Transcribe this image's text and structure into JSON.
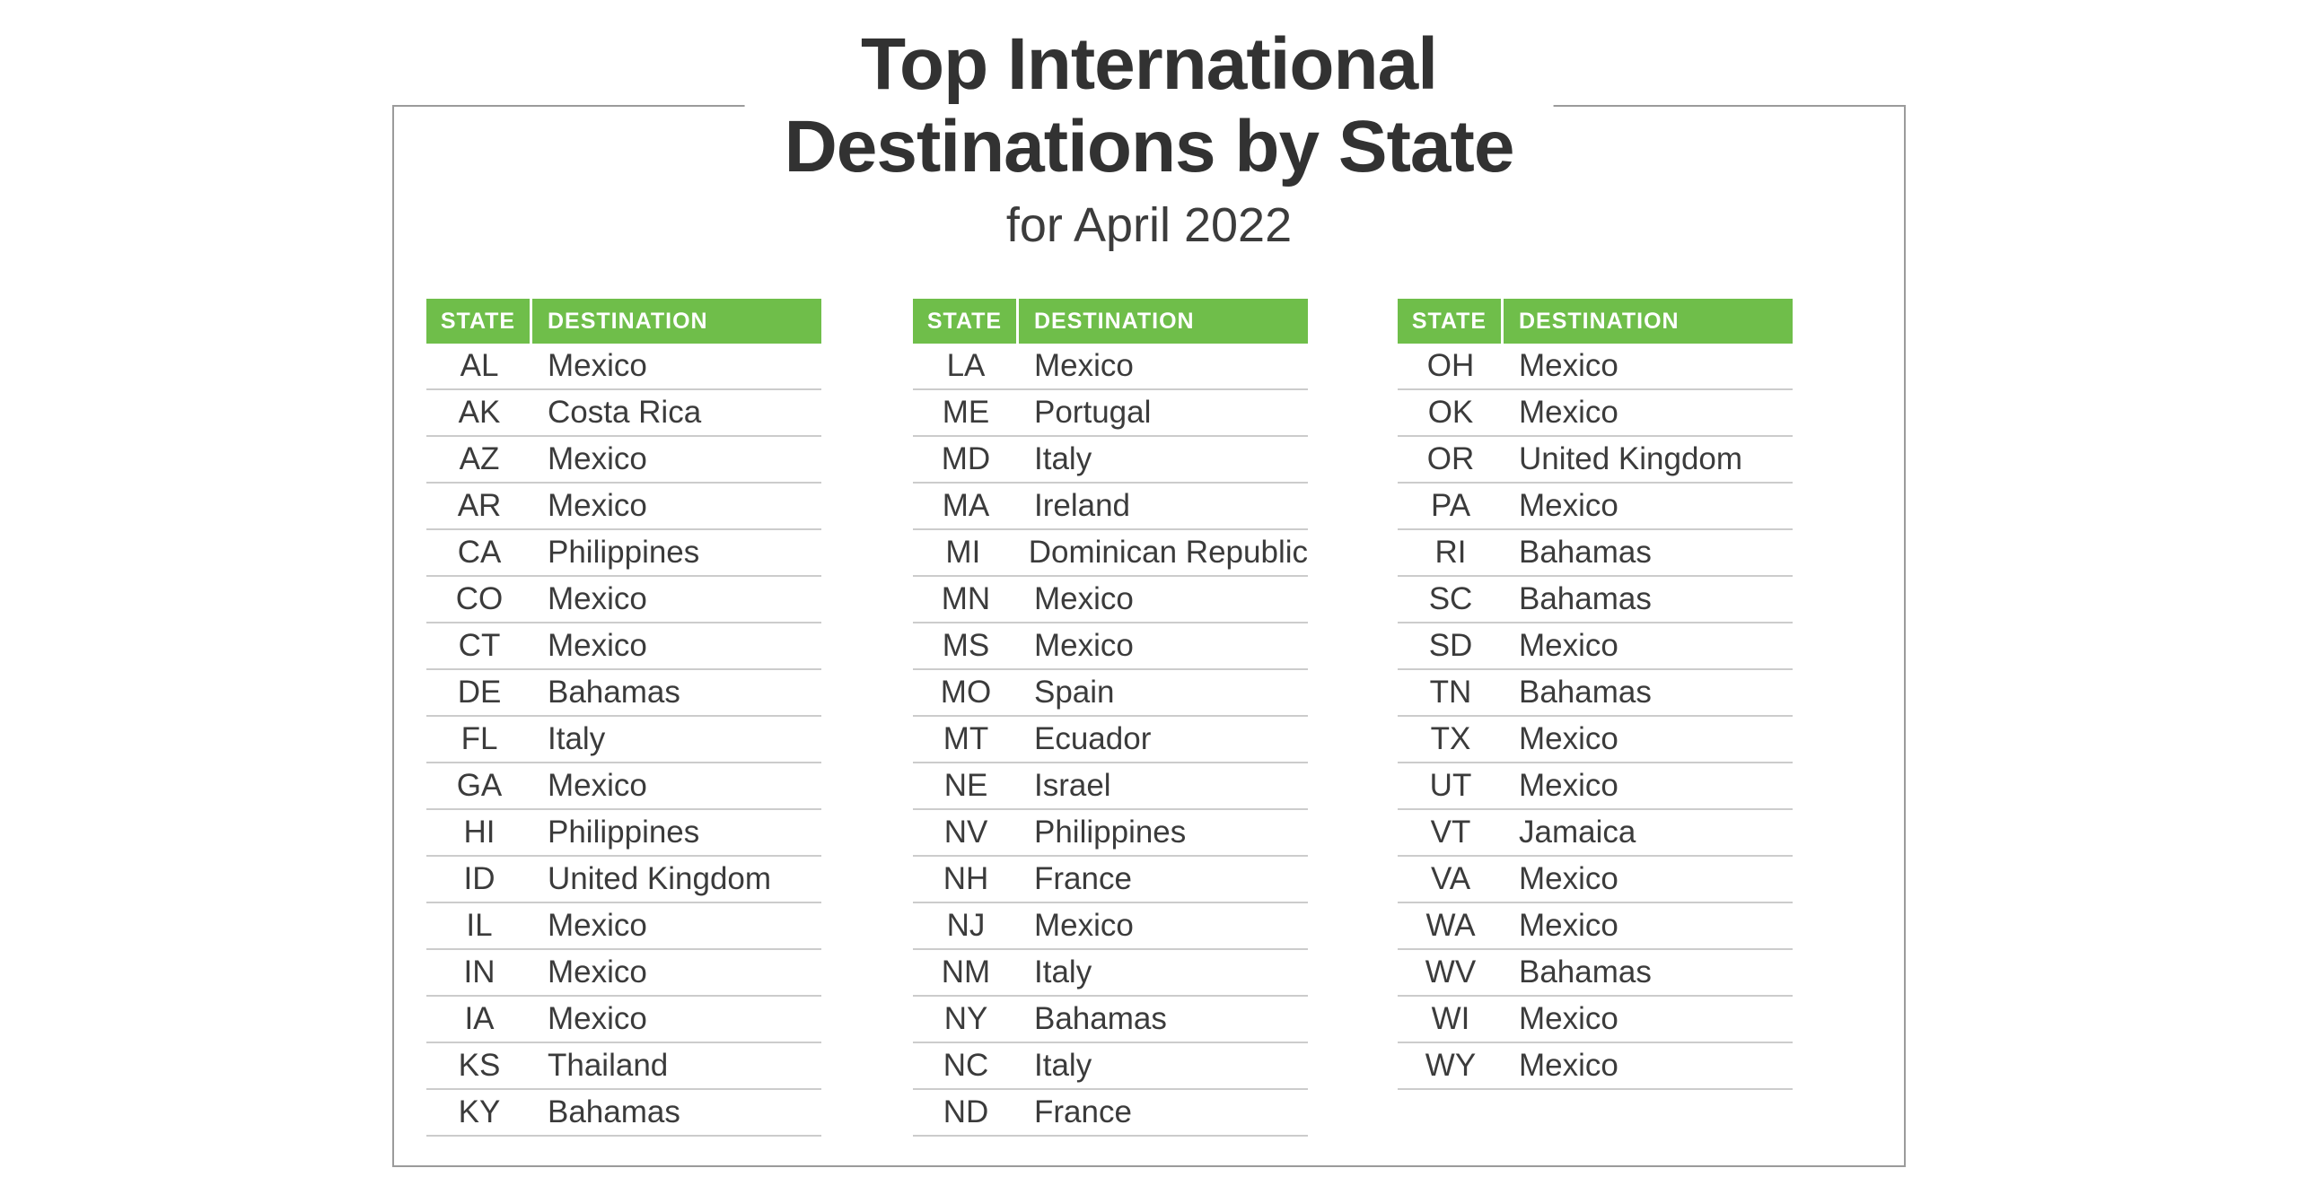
{
  "title": {
    "line1": "Top International",
    "line2": "Destinations by State",
    "subtitle": "for April 2022"
  },
  "table": {
    "headers": {
      "state": "STATE",
      "destination": "DESTINATION"
    },
    "columns": [
      {
        "rows": [
          {
            "state": "AL",
            "destination": "Mexico"
          },
          {
            "state": "AK",
            "destination": "Costa Rica"
          },
          {
            "state": "AZ",
            "destination": "Mexico"
          },
          {
            "state": "AR",
            "destination": "Mexico"
          },
          {
            "state": "CA",
            "destination": "Philippines"
          },
          {
            "state": "CO",
            "destination": "Mexico"
          },
          {
            "state": "CT",
            "destination": "Mexico"
          },
          {
            "state": "DE",
            "destination": "Bahamas"
          },
          {
            "state": "FL",
            "destination": "Italy"
          },
          {
            "state": "GA",
            "destination": "Mexico"
          },
          {
            "state": "HI",
            "destination": "Philippines"
          },
          {
            "state": "ID",
            "destination": "United Kingdom"
          },
          {
            "state": "IL",
            "destination": "Mexico"
          },
          {
            "state": "IN",
            "destination": "Mexico"
          },
          {
            "state": "IA",
            "destination": "Mexico"
          },
          {
            "state": "KS",
            "destination": "Thailand"
          },
          {
            "state": "KY",
            "destination": "Bahamas"
          }
        ]
      },
      {
        "rows": [
          {
            "state": "LA",
            "destination": "Mexico"
          },
          {
            "state": "ME",
            "destination": "Portugal"
          },
          {
            "state": "MD",
            "destination": "Italy"
          },
          {
            "state": "MA",
            "destination": "Ireland"
          },
          {
            "state": "MI",
            "destination": "Dominican Republic"
          },
          {
            "state": "MN",
            "destination": "Mexico"
          },
          {
            "state": "MS",
            "destination": "Mexico"
          },
          {
            "state": "MO",
            "destination": "Spain"
          },
          {
            "state": "MT",
            "destination": "Ecuador"
          },
          {
            "state": "NE",
            "destination": "Israel"
          },
          {
            "state": "NV",
            "destination": "Philippines"
          },
          {
            "state": "NH",
            "destination": "France"
          },
          {
            "state": "NJ",
            "destination": "Mexico"
          },
          {
            "state": "NM",
            "destination": "Italy"
          },
          {
            "state": "NY",
            "destination": "Bahamas"
          },
          {
            "state": "NC",
            "destination": "Italy"
          },
          {
            "state": "ND",
            "destination": "France"
          }
        ]
      },
      {
        "rows": [
          {
            "state": "OH",
            "destination": "Mexico"
          },
          {
            "state": "OK",
            "destination": "Mexico"
          },
          {
            "state": "OR",
            "destination": "United Kingdom"
          },
          {
            "state": "PA",
            "destination": "Mexico"
          },
          {
            "state": "RI",
            "destination": "Bahamas"
          },
          {
            "state": "SC",
            "destination": "Bahamas"
          },
          {
            "state": "SD",
            "destination": "Mexico"
          },
          {
            "state": "TN",
            "destination": "Bahamas"
          },
          {
            "state": "TX",
            "destination": "Mexico"
          },
          {
            "state": "UT",
            "destination": "Mexico"
          },
          {
            "state": "VT",
            "destination": "Jamaica"
          },
          {
            "state": "VA",
            "destination": "Mexico"
          },
          {
            "state": "WA",
            "destination": "Mexico"
          },
          {
            "state": "WV",
            "destination": "Bahamas"
          },
          {
            "state": "WI",
            "destination": "Mexico"
          },
          {
            "state": "WY",
            "destination": "Mexico"
          }
        ]
      }
    ]
  },
  "colors": {
    "header_green": "#6fbe4a",
    "header_text": "#ffffff",
    "body_text": "#3b3b3b",
    "title_text": "#323232",
    "row_divider": "#cccccc",
    "card_border": "#9b9b9b"
  }
}
